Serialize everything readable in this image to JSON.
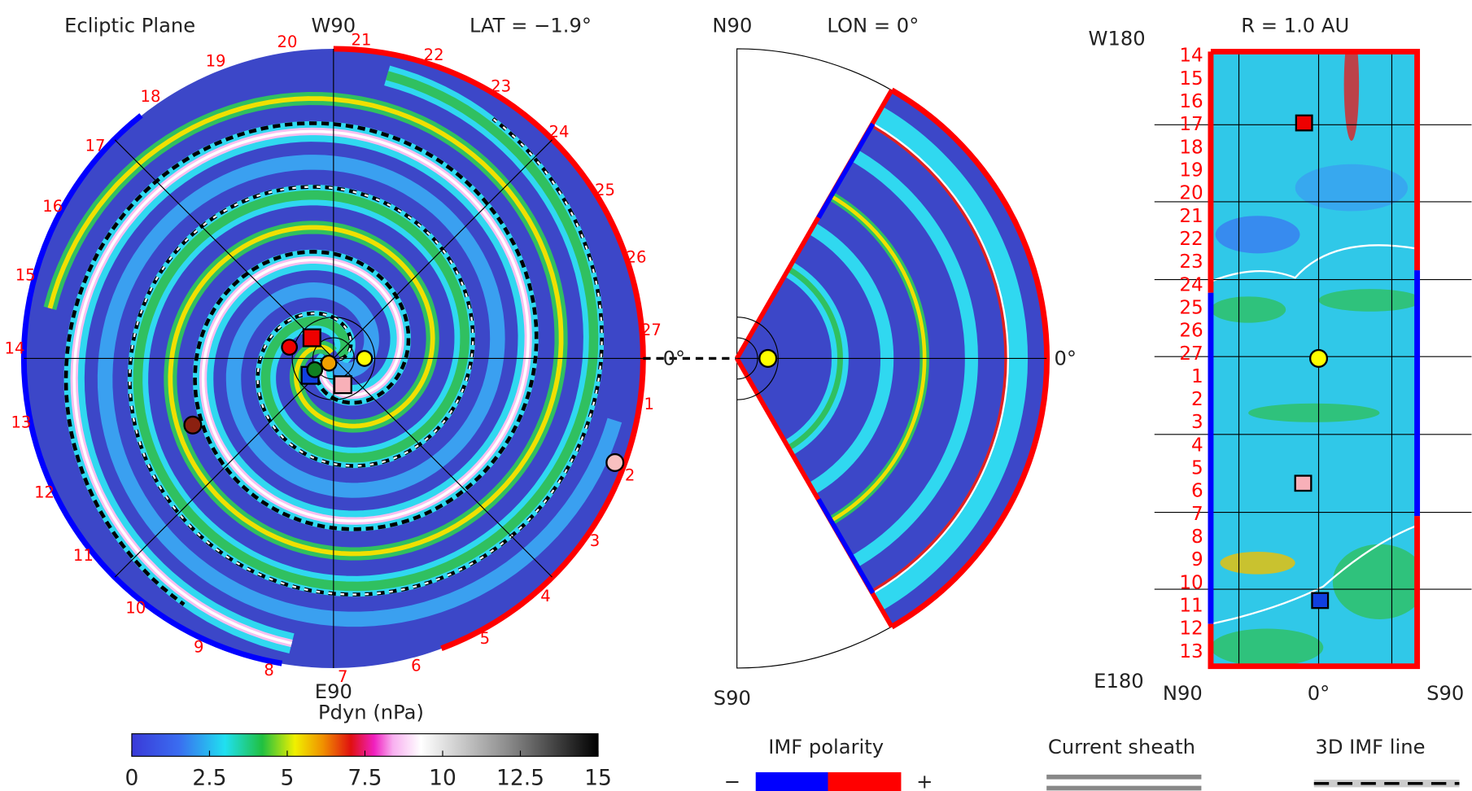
{
  "ecliptic_panel": {
    "title": "Ecliptic Plane",
    "top_label": "W90",
    "bottom_label": "E90",
    "lat_label": "LAT = −1.9°",
    "right_label": "0°",
    "ring_numbers": [
      "1",
      "2",
      "3",
      "4",
      "5",
      "6",
      "7",
      "8",
      "9",
      "10",
      "11",
      "12",
      "13",
      "14",
      "15",
      "16",
      "17",
      "18",
      "19",
      "20",
      "21",
      "22",
      "23",
      "24",
      "25",
      "26",
      "27"
    ]
  },
  "meridian_panel": {
    "top_label": "N90",
    "bottom_label": "S90",
    "lon_label": "LON = 0°",
    "right_label": "0°"
  },
  "radial_panel": {
    "r_label": "R = 1.0 AU",
    "top_label": "W180",
    "bottom_label": "E180",
    "x_labels": [
      "N90",
      "0°",
      "S90"
    ],
    "y_labels": [
      "14",
      "15",
      "16",
      "17",
      "18",
      "19",
      "20",
      "21",
      "22",
      "23",
      "24",
      "25",
      "26",
      "27",
      "1",
      "2",
      "3",
      "4",
      "5",
      "6",
      "7",
      "8",
      "9",
      "10",
      "11",
      "12",
      "13"
    ]
  },
  "colorbar": {
    "title": "Pdyn (nPa)",
    "range": [
      0,
      15
    ],
    "ticks": [
      0,
      2.5,
      5,
      7.5,
      10,
      12.5,
      15
    ]
  },
  "legend": {
    "polarity_title": "IMF polarity",
    "minus": "−",
    "plus": "+",
    "sheath_title": "Current sheath",
    "imf_line_title": "3D IMF line"
  }
}
